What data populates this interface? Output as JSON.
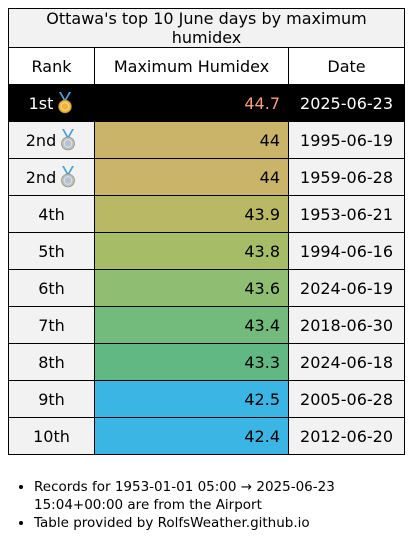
{
  "title": "Ottawa's top 10 June days by maximum humidex",
  "headers": [
    "Rank",
    "Maximum Humidex",
    "Date"
  ],
  "rows": [
    {
      "rank": "1st",
      "value": "44.7",
      "date": "2025-06-23",
      "medal": "gold-medal-icon",
      "bg": "#000000"
    },
    {
      "rank": "2nd",
      "value": "44",
      "date": "1995-06-19",
      "medal": "silver-medal-icon",
      "bg": "#c9b46a"
    },
    {
      "rank": "2nd",
      "value": "44",
      "date": "1959-06-28",
      "medal": "silver-medal-icon",
      "bg": "#c9b46a"
    },
    {
      "rank": "4th",
      "value": "43.9",
      "date": "1953-06-21",
      "medal": "",
      "bg": "#b9b864"
    },
    {
      "rank": "5th",
      "value": "43.8",
      "date": "1994-06-16",
      "medal": "",
      "bg": "#a6bc66"
    },
    {
      "rank": "6th",
      "value": "43.6",
      "date": "2024-06-19",
      "medal": "",
      "bg": "#8fbd72"
    },
    {
      "rank": "7th",
      "value": "43.4",
      "date": "2018-06-30",
      "medal": "",
      "bg": "#72bb7c"
    },
    {
      "rank": "8th",
      "value": "43.3",
      "date": "2024-06-18",
      "medal": "",
      "bg": "#62b883"
    },
    {
      "rank": "9th",
      "value": "42.5",
      "date": "2005-06-28",
      "medal": "",
      "bg": "#3bb5e3"
    },
    {
      "rank": "10th",
      "value": "42.4",
      "date": "2012-06-20",
      "medal": "",
      "bg": "#3bb5e3"
    }
  ],
  "notes": [
    "Records for 1953-01-01 05:00 → 2025-06-23 15:04+00:00 are from the Airport",
    "Table provided by RolfsWeather.github.io"
  ],
  "colors": {
    "gold": "#f2b233",
    "silver": "#b8c2cc",
    "ribbon": "#4aa3d8"
  }
}
